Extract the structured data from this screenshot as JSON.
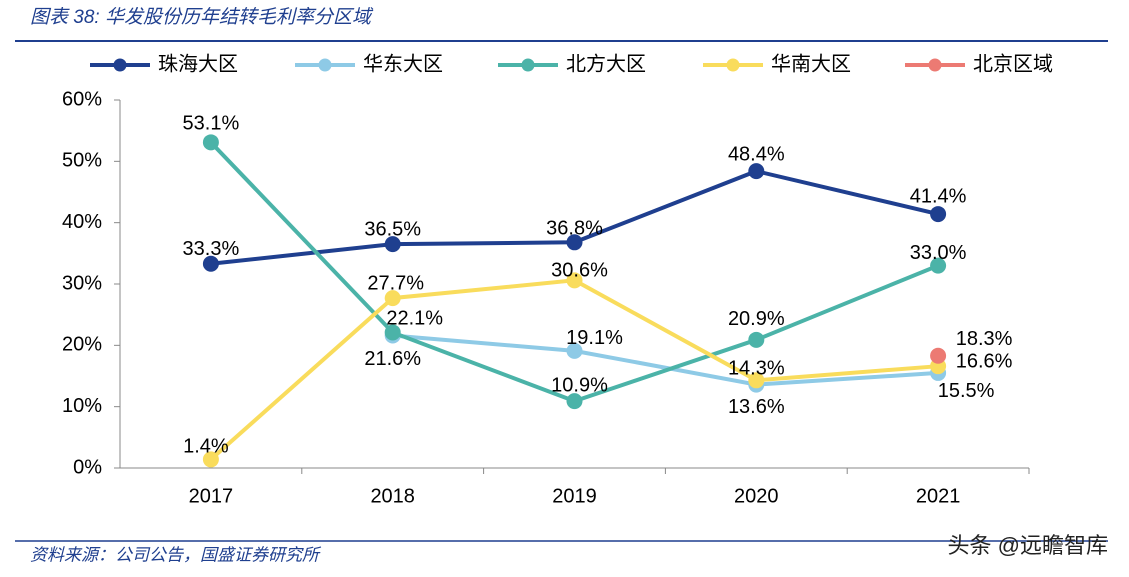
{
  "chart_data": {
    "type": "line",
    "title": "图表 38: 华发股份历年结转毛利率分区域",
    "source": "资料来源：公司公告，国盛证券研究所",
    "watermark": "头条 @远瞻智库",
    "categories": [
      "2017",
      "2018",
      "2019",
      "2020",
      "2021"
    ],
    "series": [
      {
        "name": "珠海大区",
        "color": "#1f3f8f",
        "values": [
          33.3,
          36.5,
          36.8,
          48.4,
          41.4
        ],
        "value_labels": [
          "33.3%",
          "36.5%",
          "36.8%",
          "48.4%",
          "41.4%"
        ]
      },
      {
        "name": "华东大区",
        "color": "#8ecae6",
        "values": [
          null,
          21.6,
          19.1,
          13.6,
          15.5
        ],
        "value_labels": [
          null,
          "21.6%",
          "19.1%",
          "13.6%",
          "15.5%"
        ]
      },
      {
        "name": "北方大区",
        "color": "#4bb3a8",
        "values": [
          53.1,
          22.1,
          10.9,
          20.9,
          33.0
        ],
        "value_labels": [
          "53.1%",
          "22.1%",
          "10.9%",
          "20.9%",
          "33.0%"
        ]
      },
      {
        "name": "华南大区",
        "color": "#f9dc5c",
        "values": [
          1.4,
          27.7,
          30.6,
          14.3,
          16.6
        ],
        "value_labels": [
          "1.4%",
          "27.7%",
          "30.6%",
          "14.3%",
          "16.6%"
        ]
      },
      {
        "name": "北京区域",
        "color": "#ec7a73",
        "values": [
          null,
          null,
          null,
          null,
          18.3
        ],
        "value_labels": [
          null,
          null,
          null,
          null,
          "18.3%"
        ]
      }
    ],
    "ylim": [
      0,
      60
    ],
    "yticks": [
      {
        "value": 0,
        "label": "0%"
      },
      {
        "value": 10,
        "label": "10%"
      },
      {
        "value": 20,
        "label": "20%"
      },
      {
        "value": 30,
        "label": "30%"
      },
      {
        "value": 40,
        "label": "40%"
      },
      {
        "value": 50,
        "label": "50%"
      },
      {
        "value": 60,
        "label": "60%"
      }
    ],
    "legend": "top"
  }
}
